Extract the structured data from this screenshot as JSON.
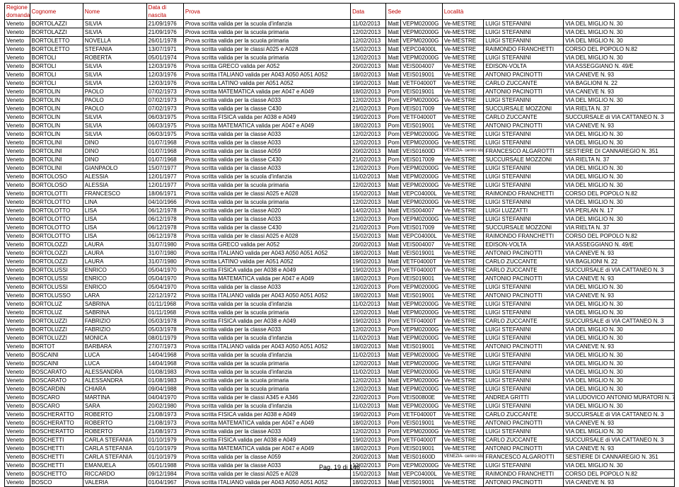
{
  "header": {
    "regione": "Regione domanda",
    "cognome": "Cognome",
    "nome": "Nome",
    "nascita": "Data di nascita",
    "prova": "Prova",
    "data": "Data",
    "sede": "Sede",
    "localita": "Località"
  },
  "footer": "Pag. 19 di 148",
  "rows": [
    [
      "Veneto",
      "BORTOLAZZI",
      "SILVIA",
      "21/09/1976",
      "Prova scritta valida per la scuola d'infanzia",
      "11/02/2013",
      "Matt",
      "VEPM02000G",
      "Ve-MESTRE",
      "LUIGI STEFANINI",
      "VIA DEL MIGLIO N. 30"
    ],
    [
      "Veneto",
      "BORTOLAZZI",
      "SILVIA",
      "21/09/1976",
      "Prova scritta valida per la scuola primaria",
      "12/02/2013",
      "Matt",
      "VEPM02000G",
      "Ve-MESTRE",
      "LUIGI STEFANINI",
      "VIA DEL MIGLIO N. 30"
    ],
    [
      "Veneto",
      "BORTOLETTO",
      "NOVELLA",
      "26/01/1978",
      "Prova scritta valida per la scuola primaria",
      "12/02/2013",
      "Matt",
      "VEPM02000G",
      "Ve-MESTRE",
      "LUIGI STEFANINI",
      "VIA DEL MIGLIO N. 30"
    ],
    [
      "Veneto",
      "BORTOLETTO",
      "STEFANIA",
      "13/07/1971",
      "Prova scritta valida per le classi A025 e A028",
      "15/02/2013",
      "Matt",
      "VEPC04000L",
      "Ve-MESTRE",
      "RAIMONDO FRANCHETTI",
      "CORSO DEL POPOLO N.82"
    ],
    [
      "Veneto",
      "BORTOLI",
      "ROBERTA",
      "05/01/1974",
      "Prova scritta valida per la scuola primaria",
      "12/02/2013",
      "Matt",
      "VEPM02000G",
      "Ve-MESTRE",
      "LUIGI STEFANINI",
      "VIA DEL MIGLIO N. 30"
    ],
    [
      "Veneto",
      "BORTOLI",
      "SILVIA",
      "12/03/1976",
      "Prova scritta GRECO valida per A052",
      "20/02/2013",
      "Matt",
      "VEIS004007",
      "Ve-MESTRE",
      "EDISON-VOLTA",
      "VIA ASSEGGIANO N. 49/E"
    ],
    [
      "Veneto",
      "BORTOLI",
      "SILVIA",
      "12/03/1976",
      "Prova scritta ITALIANO valida per A043 A050 A051 A052",
      "18/02/2013",
      "Matt",
      "VEIS019001",
      "Ve-MESTRE",
      "ANTONIO PACINOTTI",
      "VIA CANEVE N. 93"
    ],
    [
      "Veneto",
      "BORTOLI",
      "SILVIA",
      "12/03/1976",
      "Prova scritta LATINO valida per A051 A052",
      "19/02/2013",
      "Matt",
      "VETF04000T",
      "Ve-MESTRE",
      "CARLO ZUCCANTE",
      "VIA BAGLIONI N. 22"
    ],
    [
      "Veneto",
      "BORTOLIN",
      "PAOLO",
      "07/02/1973",
      "Prova scritta MATEMATICA valida per A047 e A049",
      "18/02/2013",
      "Pom",
      "VEIS019001",
      "Ve-MESTRE",
      "ANTONIO PACINOTTI",
      "VIA CANEVE N. 93"
    ],
    [
      "Veneto",
      "BORTOLIN",
      "PAOLO",
      "07/02/1973",
      "Prova scritta valida per la classe A033",
      "12/02/2013",
      "Pom",
      "VEPM02000G",
      "Ve-MESTRE",
      "LUIGI STEFANINI",
      "VIA DEL MIGLIO N. 30"
    ],
    [
      "Veneto",
      "BORTOLIN",
      "PAOLO",
      "07/02/1973",
      "Prova scritta valida per la classe C430",
      "21/02/2013",
      "Pom",
      "VEIS017009",
      "Ve-MESTRE",
      "SUCCURSALE MOZZONI",
      "VIA RIELTA N. 37"
    ],
    [
      "Veneto",
      "BORTOLIN",
      "SILVIA",
      "06/03/1975",
      "Prova scritta FISICA valida per A038 e A049",
      "19/02/2013",
      "Pom",
      "VETF04000T",
      "Ve-MESTRE",
      "CARLO ZUCCANTE",
      "SUCCURSALE di VIA CATTANEO N. 3"
    ],
    [
      "Veneto",
      "BORTOLIN",
      "SILVIA",
      "06/03/1975",
      "Prova scritta MATEMATICA valida per A047 e A049",
      "18/02/2013",
      "Pom",
      "VEIS019001",
      "Ve-MESTRE",
      "ANTONIO PACINOTTI",
      "VIA CANEVE N. 93"
    ],
    [
      "Veneto",
      "BORTOLIN",
      "SILVIA",
      "06/03/1975",
      "Prova scritta valida per la classe A033",
      "12/02/2013",
      "Pom",
      "VEPM02000G",
      "Ve-MESTRE",
      "LUIGI STEFANINI",
      "VIA DEL MIGLIO N. 30"
    ],
    [
      "Veneto",
      "BORTOLINI",
      "DINO",
      "01/07/1968",
      "Prova scritta valida per la classe A033",
      "12/02/2013",
      "Pom",
      "VEPM02000G",
      "Ve-MESTRE",
      "LUIGI STEFANINI",
      "VIA DEL MIGLIO N. 30"
    ],
    [
      "Veneto",
      "BORTOLINI",
      "DINO",
      "01/07/1968",
      "Prova scritta valida per la classe A059",
      "20/02/2013",
      "Matt",
      "VEIS01600D",
      "VENEZIA- centro storico",
      "FRANCESCO ALGAROTTI",
      "SESTIERE DI CANNAREGIO N. 351"
    ],
    [
      "Veneto",
      "BORTOLINI",
      "DINO",
      "01/07/1968",
      "Prova scritta valida per la classe C430",
      "21/02/2013",
      "Pom",
      "VEIS017009",
      "Ve-MESTRE",
      "SUCCURSALE MOZZONI",
      "VIA RIELTA N. 37"
    ],
    [
      "Veneto",
      "BORTOLINI",
      "GIANPAOLO",
      "15/07/1977",
      "Prova scritta valida per la classe A033",
      "12/02/2013",
      "Pom",
      "VEPM02000G",
      "Ve-MESTRE",
      "LUIGI STEFANINI",
      "VIA DEL MIGLIO N. 30"
    ],
    [
      "Veneto",
      "BORTOLOSO",
      "ALESSIA",
      "12/01/1977",
      "Prova scritta valida per la scuola d'infanzia",
      "11/02/2013",
      "Matt",
      "VEPM02000G",
      "Ve-MESTRE",
      "LUIGI STEFANINI",
      "VIA DEL MIGLIO N. 30"
    ],
    [
      "Veneto",
      "BORTOLOSO",
      "ALESSIA",
      "12/01/1977",
      "Prova scritta valida per la scuola primaria",
      "12/02/2013",
      "Matt",
      "VEPM02000G",
      "Ve-MESTRE",
      "LUIGI STEFANINI",
      "VIA DEL MIGLIO N. 30"
    ],
    [
      "Veneto",
      "BORTOLOTTI",
      "FRANCESCO",
      "18/06/1971",
      "Prova scritta valida per le classi A025 e A028",
      "15/02/2013",
      "Matt",
      "VEPC04000L",
      "Ve-MESTRE",
      "RAIMONDO FRANCHETTI",
      "CORSO DEL POPOLO N.82"
    ],
    [
      "Veneto",
      "BORTOLOTTO",
      "LINA",
      "04/10/1966",
      "Prova scritta valida per la scuola primaria",
      "12/02/2013",
      "Matt",
      "VEPM02000G",
      "Ve-MESTRE",
      "LUIGI STEFANINI",
      "VIA DEL MIGLIO N. 30"
    ],
    [
      "Veneto",
      "BORTOLOTTO",
      "LISA",
      "06/12/1978",
      "Prova scritta valida per la classe A020",
      "14/02/2013",
      "Matt",
      "VEIS004007",
      "Ve-MESTRE",
      "LUIGI LUZZATTI",
      "VIA PERLAN N. 17"
    ],
    [
      "Veneto",
      "BORTOLOTTO",
      "LISA",
      "06/12/1978",
      "Prova scritta valida per la classe A033",
      "12/02/2013",
      "Pom",
      "VEPM02000G",
      "Ve-MESTRE",
      "LUIGI STEFANINI",
      "VIA DEL MIGLIO N. 30"
    ],
    [
      "Veneto",
      "BORTOLOTTO",
      "LISA",
      "06/12/1978",
      "Prova scritta valida per la classe C430",
      "21/02/2013",
      "Pom",
      "VEIS017009",
      "Ve-MESTRE",
      "SUCCURSALE MOZZONI",
      "VIA RIELTA N. 37"
    ],
    [
      "Veneto",
      "BORTOLOTTO",
      "LISA",
      "06/12/1978",
      "Prova scritta valida per le classi A025 e A028",
      "15/02/2013",
      "Matt",
      "VEPC04000L",
      "Ve-MESTRE",
      "RAIMONDO FRANCHETTI",
      "CORSO DEL POPOLO N.82"
    ],
    [
      "Veneto",
      "BORTOLOZZI",
      "LAURA",
      "31/07/1980",
      "Prova scritta GRECO valida per A052",
      "20/02/2013",
      "Matt",
      "VEIS004007",
      "Ve-MESTRE",
      "EDISON-VOLTA",
      "VIA ASSEGGIANO N. 49/E"
    ],
    [
      "Veneto",
      "BORTOLOZZI",
      "LAURA",
      "31/07/1980",
      "Prova scritta ITALIANO valida per A043 A050 A051 A052",
      "18/02/2013",
      "Matt",
      "VEIS019001",
      "Ve-MESTRE",
      "ANTONIO PACINOTTI",
      "VIA CANEVE N. 93"
    ],
    [
      "Veneto",
      "BORTOLOZZI",
      "LAURA",
      "31/07/1980",
      "Prova scritta LATINO valida per A051 A052",
      "19/02/2013",
      "Matt",
      "VETF04000T",
      "Ve-MESTRE",
      "CARLO ZUCCANTE",
      "VIA BAGLIONI N. 22"
    ],
    [
      "Veneto",
      "BORTOLUSSI",
      "ENRICO",
      "05/04/1970",
      "Prova scritta FISICA valida per A038 e A049",
      "19/02/2013",
      "Pom",
      "VETF04000T",
      "Ve-MESTRE",
      "CARLO ZUCCANTE",
      "SUCCURSALE di VIA CATTANEO N. 3"
    ],
    [
      "Veneto",
      "BORTOLUSSI",
      "ENRICO",
      "05/04/1970",
      "Prova scritta MATEMATICA valida per A047 e A049",
      "18/02/2013",
      "Pom",
      "VEIS019001",
      "Ve-MESTRE",
      "ANTONIO PACINOTTI",
      "VIA CANEVE N. 93"
    ],
    [
      "Veneto",
      "BORTOLUSSI",
      "ENRICO",
      "05/04/1970",
      "Prova scritta valida per la classe A033",
      "12/02/2013",
      "Pom",
      "VEPM02000G",
      "Ve-MESTRE",
      "LUIGI STEFANINI",
      "VIA DEL MIGLIO N. 30"
    ],
    [
      "Veneto",
      "BORTOLUSSO",
      "LARA",
      "22/12/1972",
      "Prova scritta ITALIANO valida per A043 A050 A051 A052",
      "18/02/2013",
      "Matt",
      "VEIS019001",
      "Ve-MESTRE",
      "ANTONIO PACINOTTI",
      "VIA CANEVE N. 93"
    ],
    [
      "Veneto",
      "BORTOLUZ",
      "SABRINA",
      "01/11/1968",
      "Prova scritta valida per la scuola d'infanzia",
      "11/02/2013",
      "Matt",
      "VEPM02000G",
      "Ve-MESTRE",
      "LUIGI STEFANINI",
      "VIA DEL MIGLIO N. 30"
    ],
    [
      "Veneto",
      "BORTOLUZ",
      "SABRINA",
      "01/11/1968",
      "Prova scritta valida per la scuola primaria",
      "12/02/2013",
      "Matt",
      "VEPM02000G",
      "Ve-MESTRE",
      "LUIGI STEFANINI",
      "VIA DEL MIGLIO N. 30"
    ],
    [
      "Veneto",
      "BORTOLUZZI",
      "FABRIZIO",
      "05/03/1978",
      "Prova scritta FISICA valida per A038 e A049",
      "19/02/2013",
      "Pom",
      "VETF04000T",
      "Ve-MESTRE",
      "CARLO ZUCCANTE",
      "SUCCURSALE di VIA CATTANEO N. 3"
    ],
    [
      "Veneto",
      "BORTOLUZZI",
      "FABRIZIO",
      "05/03/1978",
      "Prova scritta valida per la classe A033",
      "12/02/2013",
      "Pom",
      "VEPM02000G",
      "Ve-MESTRE",
      "LUIGI STEFANINI",
      "VIA DEL MIGLIO N. 30"
    ],
    [
      "Veneto",
      "BORTOLUZZI",
      "MONICA",
      "08/01/1979",
      "Prova scritta valida per la scuola d'infanzia",
      "11/02/2013",
      "Matt",
      "VEPM02000G",
      "Ve-MESTRE",
      "LUIGI STEFANINI",
      "VIA DEL MIGLIO N. 30"
    ],
    [
      "Veneto",
      "BORTOT",
      "BARBARA",
      "27/07/1973",
      "Prova scritta ITALIANO valida per A043 A050 A051 A052",
      "18/02/2013",
      "Matt",
      "VEIS019001",
      "Ve-MESTRE",
      "ANTONIO PACINOTTI",
      "VIA CANEVE N. 93"
    ],
    [
      "Veneto",
      "BOSCAINI",
      "LUCA",
      "14/04/1968",
      "Prova scritta valida per la scuola d'infanzia",
      "11/02/2013",
      "Matt",
      "VEPM02000G",
      "Ve-MESTRE",
      "LUIGI STEFANINI",
      "VIA DEL MIGLIO N. 30"
    ],
    [
      "Veneto",
      "BOSCAINI",
      "LUCA",
      "14/04/1968",
      "Prova scritta valida per la scuola primaria",
      "12/02/2013",
      "Matt",
      "VEPM02000G",
      "Ve-MESTRE",
      "LUIGI STEFANINI",
      "VIA DEL MIGLIO N. 30"
    ],
    [
      "Veneto",
      "BOSCARATO",
      "ALESSANDRA",
      "01/08/1983",
      "Prova scritta valida per la scuola d'infanzia",
      "11/02/2013",
      "Matt",
      "VEPM02000G",
      "Ve-MESTRE",
      "LUIGI STEFANINI",
      "VIA DEL MIGLIO N. 30"
    ],
    [
      "Veneto",
      "BOSCARATO",
      "ALESSANDRA",
      "01/08/1983",
      "Prova scritta valida per la scuola primaria",
      "12/02/2013",
      "Matt",
      "VEPM02000G",
      "Ve-MESTRE",
      "LUIGI STEFANINI",
      "VIA DEL MIGLIO N. 30"
    ],
    [
      "Veneto",
      "BOSCARDIN",
      "CHIARA",
      "09/04/1988",
      "Prova scritta valida per la scuola primaria",
      "12/02/2013",
      "Matt",
      "VEPM02000G",
      "Ve-MESTRE",
      "LUIGI STEFANINI",
      "VIA DEL MIGLIO N. 30"
    ],
    [
      "Veneto",
      "BOSCARO",
      "MARTINA",
      "04/04/1970",
      "Prova scritta valida per le classi A345 e A346",
      "22/02/2013",
      "Pom",
      "VEIS00800E",
      "Ve-MESTRE",
      "ANDREA GRITTI",
      "VIA LUDOVICO ANTONIO MURATORI N. 7"
    ],
    [
      "Veneto",
      "BOSCARO",
      "SARA",
      "20/02/1980",
      "Prova scritta valida per la scuola d'infanzia",
      "11/02/2013",
      "Matt",
      "VEPM02000G",
      "Ve-MESTRE",
      "LUIGI STEFANINI",
      "VIA DEL MIGLIO N. 30"
    ],
    [
      "Veneto",
      "BOSCHERATTO",
      "ROBERTO",
      "21/08/1973",
      "Prova scritta FISICA valida per A038 e A049",
      "19/02/2013",
      "Pom",
      "VETF04000T",
      "Ve-MESTRE",
      "CARLO ZUCCANTE",
      "SUCCURSALE di VIA CATTANEO N. 3"
    ],
    [
      "Veneto",
      "BOSCHERATTO",
      "ROBERTO",
      "21/08/1973",
      "Prova scritta MATEMATICA valida per A047 e A049",
      "18/02/2013",
      "Pom",
      "VEIS019001",
      "Ve-MESTRE",
      "ANTONIO PACINOTTI",
      "VIA CANEVE N. 93"
    ],
    [
      "Veneto",
      "BOSCHERATTO",
      "ROBERTO",
      "21/08/1973",
      "Prova scritta valida per la classe A033",
      "12/02/2013",
      "Pom",
      "VEPM02000G",
      "Ve-MESTRE",
      "LUIGI STEFANINI",
      "VIA DEL MIGLIO N. 30"
    ],
    [
      "Veneto",
      "BOSCHETTI",
      "CARLA STEFANIA",
      "01/10/1979",
      "Prova scritta FISICA valida per A038 e A049",
      "19/02/2013",
      "Pom",
      "VETF04000T",
      "Ve-MESTRE",
      "CARLO ZUCCANTE",
      "SUCCURSALE di VIA CATTANEO N. 3"
    ],
    [
      "Veneto",
      "BOSCHETTI",
      "CARLA STEFANIA",
      "01/10/1979",
      "Prova scritta MATEMATICA valida per A047 e A049",
      "18/02/2013",
      "Pom",
      "VEIS019001",
      "Ve-MESTRE",
      "ANTONIO PACINOTTI",
      "VIA CANEVE N. 93"
    ],
    [
      "Veneto",
      "BOSCHETTI",
      "CARLA STEFANIA",
      "01/10/1979",
      "Prova scritta valida per la classe A059",
      "20/02/2013",
      "Matt",
      "VEIS01600D",
      "VENEZIA- centro storico",
      "FRANCESCO ALGAROTTI",
      "SESTIERE DI CANNAREGIO N. 351"
    ],
    [
      "Veneto",
      "BOSCHETTI",
      "EMANUELA",
      "05/01/1988",
      "Prova scritta valida per la classe A033",
      "12/02/2013",
      "Pom",
      "VEPM02000G",
      "Ve-MESTRE",
      "LUIGI STEFANINI",
      "VIA DEL MIGLIO N. 30"
    ],
    [
      "Veneto",
      "BOSCHETTO",
      "RICCARDO",
      "09/12/1984",
      "Prova scritta valida per le classi A025 e A028",
      "15/02/2013",
      "Matt",
      "VEPC04000L",
      "Ve-MESTRE",
      "RAIMONDO FRANCHETTI",
      "CORSO DEL POPOLO N.82"
    ],
    [
      "Veneto",
      "BOSCO",
      "VALERIA",
      "01/04/1967",
      "Prova scritta ITALIANO valida per A043 A050 A051 A052",
      "18/02/2013",
      "Matt",
      "VEIS019001",
      "Ve-MESTRE",
      "ANTONIO PACINOTTI",
      "VIA CANEVE N. 93"
    ]
  ]
}
